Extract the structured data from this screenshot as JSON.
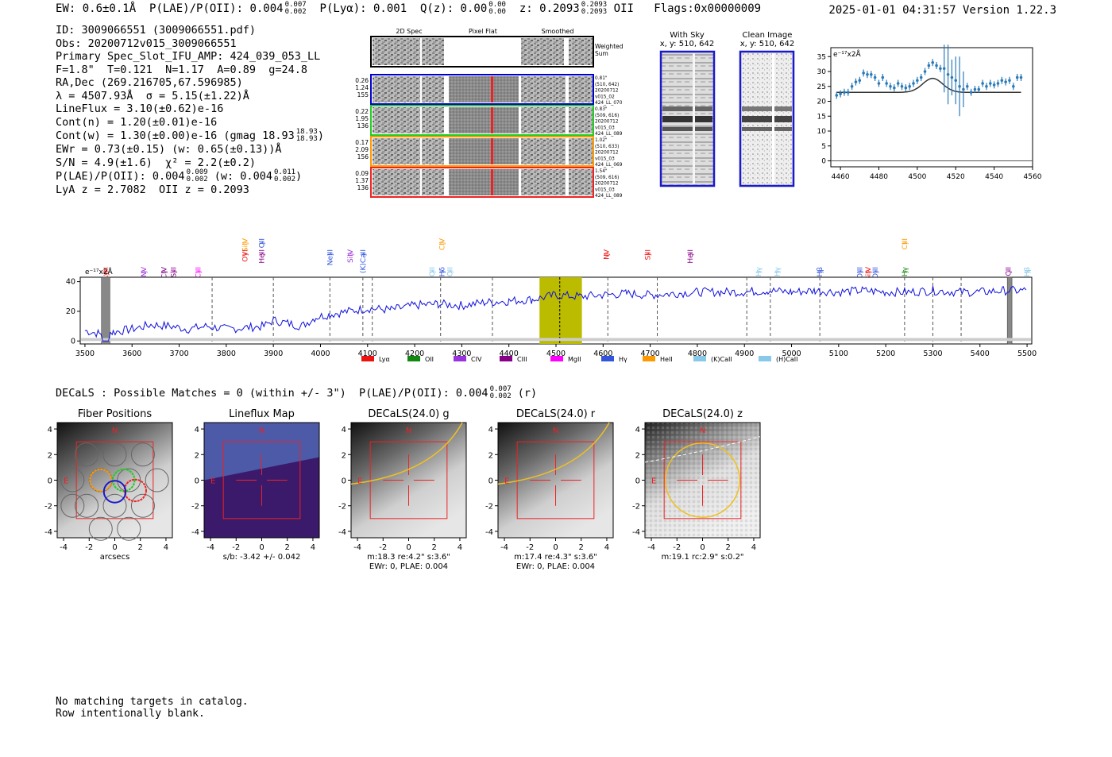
{
  "header": {
    "ew": "EW: 0.6±0.1Å",
    "plae_label": "P(LAE)/P(OII): 0.004",
    "plae_hi": "0.007",
    "plae_lo": "0.002",
    "plya": "P(Lyα): 0.001",
    "qz_label": "Q(z): 0.00",
    "qz_hi": "0.00",
    "qz_lo": "0.00",
    "z_label": "z: 0.2093",
    "z_hi": "0.2093",
    "z_lo": "0.2093",
    "z_line": "OII",
    "flags": "Flags:0x00000009",
    "timestamp": "2025-01-01 04:31:57  Version 1.22.3"
  },
  "info": {
    "id": "ID: 3009066551 (3009066551.pdf)",
    "obs": "Obs: 20200712v015_3009066551",
    "primary": "Primary Spec_Slot_IFU_AMP: 424_039_053_LL",
    "fwhm": "F=1.8\"  T=0.121  N=1.17  A=0.89  g=24.8",
    "radec": "RA,Dec (269.216705,67.596985)",
    "lambda": "λ = 4507.93Å  σ = 5.15(±1.22)Å",
    "lineflux": "LineFlux = 3.10(±0.62)e-16",
    "contn": "Cont(n) = 1.20(±0.01)e-16",
    "contw": "Cont(w) = 1.30(±0.00)e-16 (gmag 18.93",
    "contw_hi": "18.93",
    "contw_lo": "18.93",
    "ewr": "EWr = 0.73(±0.15) (w: 0.65(±0.13))Å",
    "sn": "S/N = 4.9(±1.6)  χ² = 2.2(±0.2)",
    "plae": "P(LAE)/P(OII): 0.004",
    "plae_hi": "0.009",
    "plae_lo": "0.002",
    "plae_w": "(w: 0.004",
    "plae_w_hi": "0.011",
    "plae_w_lo": "0.002",
    "lyaz": "LyA z = 2.7082  OII z = 0.2093"
  },
  "cutouts": {
    "col_labels": [
      "2D Spec",
      "Pixel Flat",
      "Smoothed"
    ],
    "weighted_sum": [
      "Weighted",
      "Sum"
    ],
    "rows": [
      {
        "left": [
          "0.26",
          "1.24",
          "155"
        ],
        "right": [
          "0.81\"",
          "(510, 642)",
          "20200712",
          "v015_02",
          "424_LL_070"
        ],
        "color": "#0000cc"
      },
      {
        "left": [
          "0.22",
          "1.95",
          "136"
        ],
        "right": [
          "0.83\"",
          "(509, 616)",
          "20200712",
          "v015_03",
          "424_LL_089"
        ],
        "color": "#22cc22"
      },
      {
        "left": [
          "0.17",
          "2.09",
          "156"
        ],
        "right": [
          "1.02\"",
          "(510, 633)",
          "20200712",
          "v015_03",
          "424_LL_069"
        ],
        "color": "#ff9900"
      },
      {
        "left": [
          "0.09",
          "1.37",
          "136"
        ],
        "right": [
          "1.54\"",
          "(509, 616)",
          "20200712",
          "v015_03",
          "424_LL_089"
        ],
        "color": "#ee2222"
      }
    ]
  },
  "sky_panels": {
    "with_sky": [
      "With Sky",
      "x, y: 510, 642"
    ],
    "clean": [
      "Clean Image",
      "x, y: 510, 642"
    ]
  },
  "zoom_chart": {
    "type": "line",
    "ylabel": "e⁻¹⁷x2Å",
    "xlim": [
      4455,
      4560
    ],
    "ylim": [
      -2,
      38
    ],
    "xticks": [
      4460,
      4480,
      4500,
      4520,
      4540,
      4560
    ],
    "yticks": [
      0,
      5,
      10,
      15,
      20,
      25,
      30,
      35
    ],
    "data_x": [
      4458,
      4460,
      4462,
      4464,
      4466,
      4468,
      4470,
      4472,
      4474,
      4476,
      4478,
      4480,
      4482,
      4484,
      4486,
      4488,
      4490,
      4492,
      4494,
      4496,
      4498,
      4500,
      4502,
      4504,
      4506,
      4508,
      4510,
      4512,
      4514,
      4516,
      4518,
      4520,
      4522,
      4524,
      4526,
      4528,
      4530,
      4532,
      4534,
      4536,
      4538,
      4540,
      4542,
      4544,
      4546,
      4548,
      4550,
      4552,
      4554
    ],
    "data_y": [
      22,
      22.5,
      23,
      23,
      25,
      26.5,
      27,
      29.5,
      29,
      29,
      28,
      26,
      28,
      26,
      25,
      24.5,
      26,
      25,
      24.5,
      25,
      26,
      27,
      28,
      30,
      32,
      33,
      32,
      31,
      31,
      29,
      28,
      27,
      25,
      24,
      25,
      23,
      24,
      24,
      26,
      25,
      26,
      25.5,
      26,
      27,
      26.5,
      27,
      25,
      28,
      28
    ],
    "fit_baseline": 23,
    "fit_amp": 4.7,
    "fit_center": 4508,
    "fit_sigma": 5.15
  },
  "spectrum_chart": {
    "type": "line",
    "ylabel": "e⁻¹⁷x2Å",
    "xlim": [
      3490,
      5510
    ],
    "ylim": [
      -2,
      43
    ],
    "xticks": [
      3500,
      3600,
      3700,
      3800,
      3900,
      4000,
      4100,
      4200,
      4300,
      4400,
      4500,
      4600,
      4700,
      4800,
      4900,
      5000,
      5100,
      5200,
      5300,
      5400,
      5500
    ],
    "yticks": [
      0,
      20,
      40
    ],
    "highlight_band": [
      4465,
      4555
    ],
    "line_center": 4508,
    "masked_regions": [
      [
        3535,
        3553
      ],
      [
        5458,
        5468
      ]
    ],
    "vlines": [
      3770,
      3900,
      4020,
      4090,
      4110,
      4255,
      4365,
      4610,
      4715,
      4905,
      4955,
      5060,
      5240,
      5300,
      5360
    ],
    "spectrum_points": [
      [
        3500,
        7
      ],
      [
        3530,
        5
      ],
      [
        3560,
        6
      ],
      [
        3600,
        8
      ],
      [
        3640,
        11
      ],
      [
        3680,
        10
      ],
      [
        3720,
        8
      ],
      [
        3760,
        10
      ],
      [
        3800,
        8
      ],
      [
        3840,
        9
      ],
      [
        3880,
        10
      ],
      [
        3900,
        14
      ],
      [
        3930,
        12
      ],
      [
        3960,
        10
      ],
      [
        3990,
        16
      ],
      [
        4020,
        18
      ],
      [
        4060,
        20
      ],
      [
        4100,
        22
      ],
      [
        4150,
        21
      ],
      [
        4200,
        24
      ],
      [
        4250,
        25
      ],
      [
        4300,
        24
      ],
      [
        4350,
        26
      ],
      [
        4400,
        27
      ],
      [
        4450,
        28
      ],
      [
        4500,
        31
      ],
      [
        4550,
        30
      ],
      [
        4600,
        31
      ],
      [
        4650,
        32
      ],
      [
        4700,
        31
      ],
      [
        4750,
        32
      ],
      [
        4800,
        33
      ],
      [
        4850,
        33
      ],
      [
        4900,
        33
      ],
      [
        4950,
        34
      ],
      [
        5000,
        33
      ],
      [
        5050,
        34
      ],
      [
        5100,
        33
      ],
      [
        5150,
        34
      ],
      [
        5200,
        33
      ],
      [
        5250,
        33
      ],
      [
        5300,
        34
      ],
      [
        5350,
        33
      ],
      [
        5400,
        33
      ],
      [
        5450,
        34
      ],
      [
        5500,
        34
      ]
    ],
    "legend": [
      {
        "name": "Lyα",
        "color": "#ee1111"
      },
      {
        "name": "OII",
        "color": "#118811"
      },
      {
        "name": "CIV",
        "color": "#9933dd"
      },
      {
        "name": "CIII",
        "color": "#880088"
      },
      {
        "name": "MgII",
        "color": "#ff00ff"
      },
      {
        "name": "Hγ",
        "color": "#3355dd"
      },
      {
        "name": "HeII",
        "color": "#ff9900"
      },
      {
        "name": "(K)CaII",
        "color": "#88c8e8"
      },
      {
        "name": "(H)CaII",
        "color": "#88c8e8"
      }
    ],
    "line_labels": [
      {
        "text": "Lyα",
        "x": 3543,
        "color": "#ee1111",
        "row": 2
      },
      {
        "text": "NV",
        "x": 3625,
        "color": "#9933dd",
        "row": 2
      },
      {
        "text": "CIV",
        "x": 3668,
        "color": "#880088",
        "row": 2
      },
      {
        "text": "SiII",
        "x": 3688,
        "color": "#880088",
        "row": 2
      },
      {
        "text": "CIII",
        "x": 3740,
        "color": "#ff00ff",
        "row": 2
      },
      {
        "text": "SiIV",
        "x": 3840,
        "color": "#ff9900",
        "row": 0
      },
      {
        "text": "OII",
        "x": 3875,
        "color": "#3355dd",
        "row": 0
      },
      {
        "text": "OVI",
        "x": 3840,
        "color": "#ee1111",
        "row": 1
      },
      {
        "text": "HeII",
        "x": 3875,
        "color": "#880088",
        "row": 1
      },
      {
        "text": "NeIII",
        "x": 4020,
        "color": "#3355dd",
        "row": 1
      },
      {
        "text": "SiIV",
        "x": 4063,
        "color": "#9933dd",
        "row": 1
      },
      {
        "text": "(K)CaII",
        "x": 4090,
        "color": "#3355dd",
        "row": 1
      },
      {
        "text": "CIV",
        "x": 4258,
        "color": "#ff9900",
        "row": 0
      },
      {
        "text": "OII",
        "x": 4237,
        "color": "#88c8e8",
        "row": 2
      },
      {
        "text": "Hδ",
        "x": 4258,
        "color": "#3355dd",
        "row": 2
      },
      {
        "text": "OII",
        "x": 4275,
        "color": "#88c8e8",
        "row": 2
      },
      {
        "text": "NV",
        "x": 4607,
        "color": "#ee1111",
        "row": 1
      },
      {
        "text": "SiII",
        "x": 4695,
        "color": "#ee1111",
        "row": 1
      },
      {
        "text": "HeII",
        "x": 4785,
        "color": "#880088",
        "row": 1
      },
      {
        "text": "Hγ",
        "x": 4930,
        "color": "#88c8e8",
        "row": 2
      },
      {
        "text": "Hγ",
        "x": 4970,
        "color": "#88c8e8",
        "row": 2
      },
      {
        "text": "Hβ",
        "x": 5060,
        "color": "#3355dd",
        "row": 2
      },
      {
        "text": "OIII",
        "x": 5145,
        "color": "#3355dd",
        "row": 2
      },
      {
        "text": "SiIV",
        "x": 5163,
        "color": "#ee1111",
        "row": 2
      },
      {
        "text": "OIII",
        "x": 5178,
        "color": "#3355dd",
        "row": 2
      },
      {
        "text": "CIII",
        "x": 5240,
        "color": "#ff9900",
        "row": 0
      },
      {
        "text": "Hγ",
        "x": 5240,
        "color": "#118811",
        "row": 2
      },
      {
        "text": "CII",
        "x": 5460,
        "color": "#880088",
        "row": 2
      },
      {
        "text": "Hβ",
        "x": 5500,
        "color": "#88c8e8",
        "row": 2
      }
    ]
  },
  "decals": {
    "title": "DECaLS : Possible Matches = 0 (within +/- 3\")  P(LAE)/P(OII): 0.004",
    "title_hi": "0.007",
    "title_lo": "0.002",
    "title_suffix": "(r)",
    "panels": [
      {
        "title": "Fiber Positions",
        "caption": [
          "arcsecs"
        ],
        "kind": "fibers"
      },
      {
        "title": "Lineflux Map",
        "caption": [
          "s/b: -3.42 +/- 0.042"
        ],
        "kind": "lineflux"
      },
      {
        "title": "DECaLS(24.0) g",
        "caption": [
          "m:18.3  re:4.2\"  s:3.6\"",
          "EWr: 0, PLAE: 0.004"
        ],
        "kind": "g"
      },
      {
        "title": "DECaLS(24.0) r",
        "caption": [
          "m:17.4  re:4.3\"  s:3.6\"",
          "EWr: 0, PLAE: 0.004"
        ],
        "kind": "r"
      },
      {
        "title": "DECaLS(24.0) z",
        "caption": [
          "m:19.1 rc:2.9\"  s:0.2\""
        ],
        "kind": "z"
      }
    ],
    "axis_ticks": [
      -4,
      -2,
      0,
      2,
      4
    ],
    "north": "N",
    "east": "E"
  },
  "footer": {
    "line1": "No matching targets in catalog.",
    "line2": "Row intentionally blank."
  }
}
